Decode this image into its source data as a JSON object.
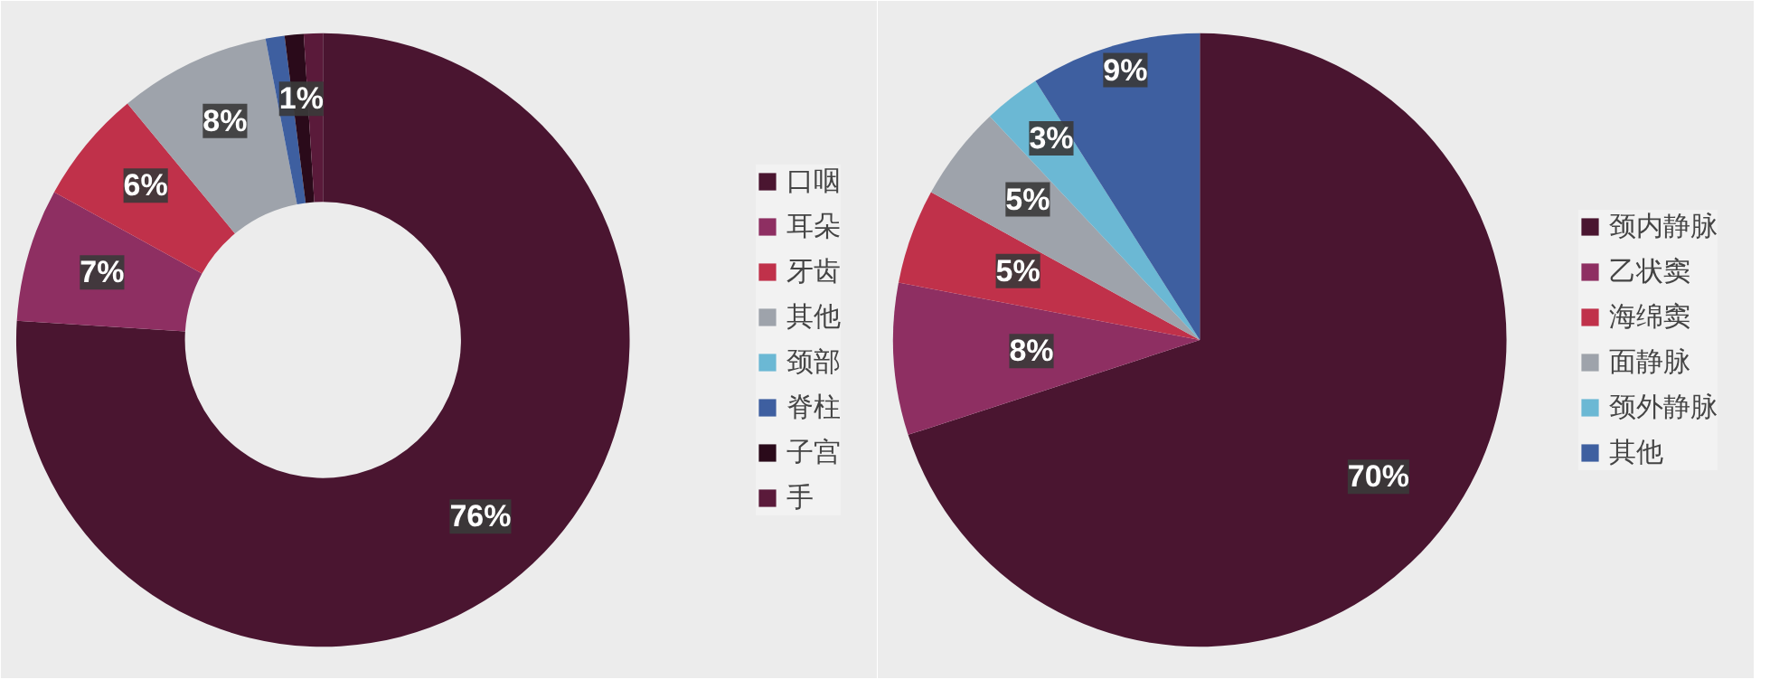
{
  "chart_data": [
    {
      "type": "donut",
      "categories": [
        "口咽",
        "耳朵",
        "牙齿",
        "其他",
        "颈部",
        "脊柱",
        "子宫",
        "手"
      ],
      "values": [
        76,
        7,
        6,
        8,
        0,
        1,
        1,
        1
      ],
      "colors": [
        "#4a1530",
        "#8e2f62",
        "#c0314a",
        "#9ea3ab",
        "#6bb8d4",
        "#3e5fa0",
        "#2a0a1a",
        "#5a1a3a"
      ],
      "value_labels": [
        "76%",
        "7%",
        "6%",
        "8%",
        null,
        null,
        "1%",
        null
      ],
      "legend": "right"
    },
    {
      "type": "pie",
      "categories": [
        "颈内静脉",
        "乙状窦",
        "海绵窦",
        "面静脉",
        "颈外静脉",
        "其他"
      ],
      "values": [
        70,
        8,
        5,
        5,
        3,
        9
      ],
      "colors": [
        "#4a1530",
        "#8e2f62",
        "#c0314a",
        "#9ea3ab",
        "#6bb8d4",
        "#3e5fa0"
      ],
      "value_labels": [
        "70%",
        "8%",
        "5%",
        "5%",
        "3%",
        "9%"
      ],
      "legend": "right"
    }
  ]
}
